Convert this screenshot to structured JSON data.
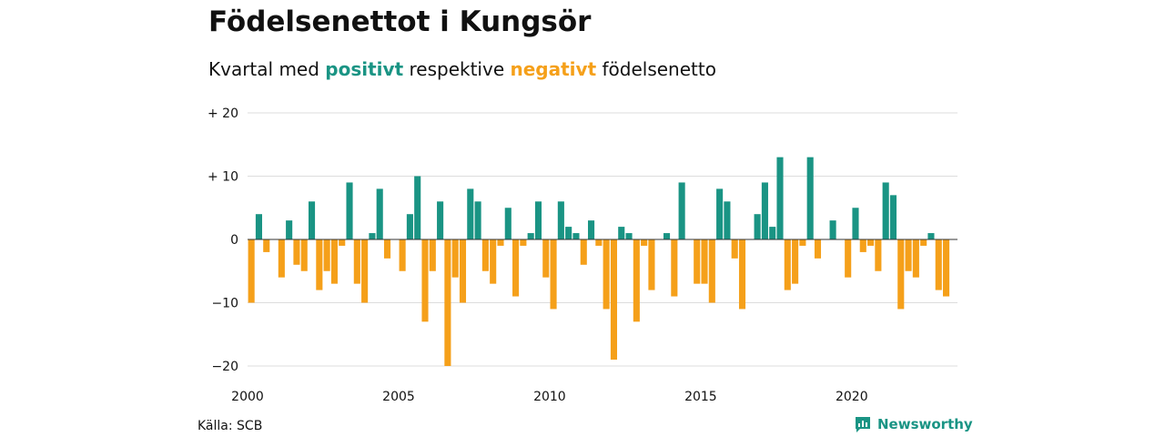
{
  "header": {
    "title": "Födelsenettot i Kungsör",
    "subtitle_prefix": "Kvartal med",
    "subtitle_positive": "positivt",
    "subtitle_middle": "respektive",
    "subtitle_negative": "negativt",
    "subtitle_suffix": "födelsenetto"
  },
  "footer": {
    "source": "Källa: SCB",
    "brand": "Newsworthy"
  },
  "colors": {
    "positive": "#1a9484",
    "negative": "#f5a01a",
    "grid": "#dddddd"
  },
  "chart_data": {
    "type": "bar",
    "title": "Födelsenettot i Kungsör",
    "subtitle": "Kvartal med positivt respektive negativt födelsenetto",
    "ylim": [
      -20,
      20
    ],
    "y_ticks": [
      {
        "value": 20,
        "label": "+ 20"
      },
      {
        "value": 10,
        "label": "+ 10"
      },
      {
        "value": 0,
        "label": "0"
      },
      {
        "value": -10,
        "label": "−10"
      },
      {
        "value": -20,
        "label": "−20"
      }
    ],
    "x_ticks": [
      "2000",
      "2005",
      "2010",
      "2015",
      "2020"
    ],
    "start_year": 2000,
    "values": [
      -10,
      4,
      -2,
      0,
      -6,
      3,
      -4,
      -5,
      6,
      -8,
      -5,
      -7,
      -1,
      9,
      -7,
      -10,
      1,
      8,
      -3,
      0,
      -5,
      4,
      10,
      -13,
      -5,
      6,
      -20,
      -6,
      -10,
      8,
      6,
      -5,
      -7,
      -1,
      5,
      -9,
      -1,
      1,
      6,
      -6,
      -11,
      6,
      2,
      1,
      -4,
      3,
      -1,
      -11,
      -19,
      2,
      1,
      -13,
      -1,
      -8,
      0,
      1,
      -9,
      9,
      0,
      -7,
      -7,
      -10,
      8,
      6,
      -3,
      -11,
      0,
      4,
      9,
      2,
      13,
      -8,
      -7,
      -1,
      13,
      -3,
      0,
      3,
      0,
      -6,
      5,
      -2,
      -1,
      -5,
      9,
      7,
      -11,
      -5,
      -6,
      -1,
      1,
      -8,
      -9
    ]
  }
}
